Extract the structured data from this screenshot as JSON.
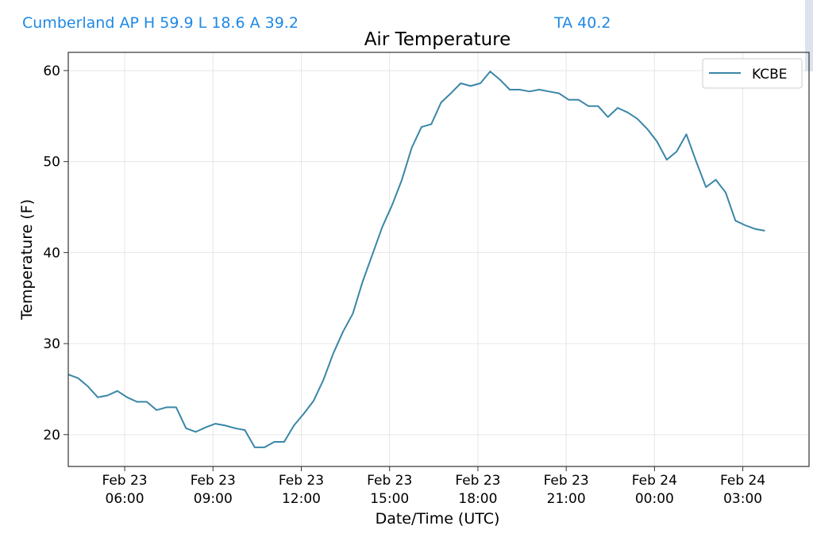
{
  "header": {
    "station_summary": "Cumberland AP H 59.9 L 18.6 A 39.2",
    "ta_label": "TA 40.2"
  },
  "colors": {
    "header_text": "#1e88e5",
    "series_line": "#3a86a8",
    "grid": "#e6e6e6"
  },
  "chart_data": {
    "type": "line",
    "title": "Air Temperature",
    "xlabel": "Date/Time (UTC)",
    "ylabel": "Temperature (F)",
    "xlim": [
      "2021-02-23 04:05",
      "2021-02-24 05:15"
    ],
    "ylim": [
      16.5,
      62
    ],
    "yticks": [
      20,
      30,
      40,
      50,
      60
    ],
    "xticks": [
      {
        "t": "2021-02-23 06:00",
        "line1": "Feb 23",
        "line2": "06:00"
      },
      {
        "t": "2021-02-23 09:00",
        "line1": "Feb 23",
        "line2": "09:00"
      },
      {
        "t": "2021-02-23 12:00",
        "line1": "Feb 23",
        "line2": "12:00"
      },
      {
        "t": "2021-02-23 15:00",
        "line1": "Feb 23",
        "line2": "15:00"
      },
      {
        "t": "2021-02-23 18:00",
        "line1": "Feb 23",
        "line2": "18:00"
      },
      {
        "t": "2021-02-23 21:00",
        "line1": "Feb 23",
        "line2": "21:00"
      },
      {
        "t": "2021-02-24 00:00",
        "line1": "Feb 24",
        "line2": "00:00"
      },
      {
        "t": "2021-02-24 03:00",
        "line1": "Feb 24",
        "line2": "03:00"
      }
    ],
    "grid": true,
    "legend": "top-right",
    "series": [
      {
        "name": "KCBE",
        "points": [
          [
            "2021-02-23 04:05",
            26.6
          ],
          [
            "2021-02-23 04:25",
            26.2
          ],
          [
            "2021-02-23 04:45",
            25.3
          ],
          [
            "2021-02-23 05:05",
            24.1
          ],
          [
            "2021-02-23 05:25",
            24.3
          ],
          [
            "2021-02-23 05:45",
            24.8
          ],
          [
            "2021-02-23 06:05",
            24.1
          ],
          [
            "2021-02-23 06:25",
            23.6
          ],
          [
            "2021-02-23 06:45",
            23.6
          ],
          [
            "2021-02-23 07:05",
            22.7
          ],
          [
            "2021-02-23 07:25",
            23.0
          ],
          [
            "2021-02-23 07:45",
            23.0
          ],
          [
            "2021-02-23 08:05",
            20.7
          ],
          [
            "2021-02-23 08:25",
            20.3
          ],
          [
            "2021-02-23 08:45",
            20.8
          ],
          [
            "2021-02-23 09:05",
            21.2
          ],
          [
            "2021-02-23 09:25",
            21.0
          ],
          [
            "2021-02-23 09:45",
            20.7
          ],
          [
            "2021-02-23 10:05",
            20.5
          ],
          [
            "2021-02-23 10:25",
            18.6
          ],
          [
            "2021-02-23 10:45",
            18.6
          ],
          [
            "2021-02-23 11:05",
            19.2
          ],
          [
            "2021-02-23 11:25",
            19.2
          ],
          [
            "2021-02-23 11:45",
            21.0
          ],
          [
            "2021-02-23 12:05",
            22.3
          ],
          [
            "2021-02-23 12:25",
            23.7
          ],
          [
            "2021-02-23 12:45",
            26.0
          ],
          [
            "2021-02-23 13:05",
            28.9
          ],
          [
            "2021-02-23 13:25",
            31.3
          ],
          [
            "2021-02-23 13:45",
            33.3
          ],
          [
            "2021-02-23 14:05",
            36.8
          ],
          [
            "2021-02-23 14:25",
            39.8
          ],
          [
            "2021-02-23 14:45",
            42.8
          ],
          [
            "2021-02-23 15:05",
            45.2
          ],
          [
            "2021-02-23 15:25",
            48.0
          ],
          [
            "2021-02-23 15:45",
            51.5
          ],
          [
            "2021-02-23 16:05",
            53.8
          ],
          [
            "2021-02-23 16:25",
            54.1
          ],
          [
            "2021-02-23 16:45",
            56.5
          ],
          [
            "2021-02-23 17:05",
            57.5
          ],
          [
            "2021-02-23 17:25",
            58.6
          ],
          [
            "2021-02-23 17:45",
            58.3
          ],
          [
            "2021-02-23 18:05",
            58.6
          ],
          [
            "2021-02-23 18:25",
            59.9
          ],
          [
            "2021-02-23 18:45",
            59.0
          ],
          [
            "2021-02-23 19:05",
            57.9
          ],
          [
            "2021-02-23 19:25",
            57.9
          ],
          [
            "2021-02-23 19:45",
            57.7
          ],
          [
            "2021-02-23 20:05",
            57.9
          ],
          [
            "2021-02-23 20:25",
            57.7
          ],
          [
            "2021-02-23 20:45",
            57.5
          ],
          [
            "2021-02-23 21:05",
            56.8
          ],
          [
            "2021-02-23 21:25",
            56.8
          ],
          [
            "2021-02-23 21:45",
            56.1
          ],
          [
            "2021-02-23 22:05",
            56.1
          ],
          [
            "2021-02-23 22:25",
            54.9
          ],
          [
            "2021-02-23 22:45",
            55.9
          ],
          [
            "2021-02-23 23:05",
            55.4
          ],
          [
            "2021-02-23 23:25",
            54.7
          ],
          [
            "2021-02-23 23:45",
            53.6
          ],
          [
            "2021-02-24 00:05",
            52.2
          ],
          [
            "2021-02-24 00:25",
            50.2
          ],
          [
            "2021-02-24 00:45",
            51.1
          ],
          [
            "2021-02-24 01:05",
            53.0
          ],
          [
            "2021-02-24 01:25",
            50.0
          ],
          [
            "2021-02-24 01:45",
            47.2
          ],
          [
            "2021-02-24 02:05",
            48.0
          ],
          [
            "2021-02-24 02:25",
            46.6
          ],
          [
            "2021-02-24 02:45",
            43.5
          ],
          [
            "2021-02-24 03:05",
            43.0
          ],
          [
            "2021-02-24 03:25",
            42.6
          ],
          [
            "2021-02-24 03:45",
            42.4
          ]
        ]
      }
    ]
  }
}
